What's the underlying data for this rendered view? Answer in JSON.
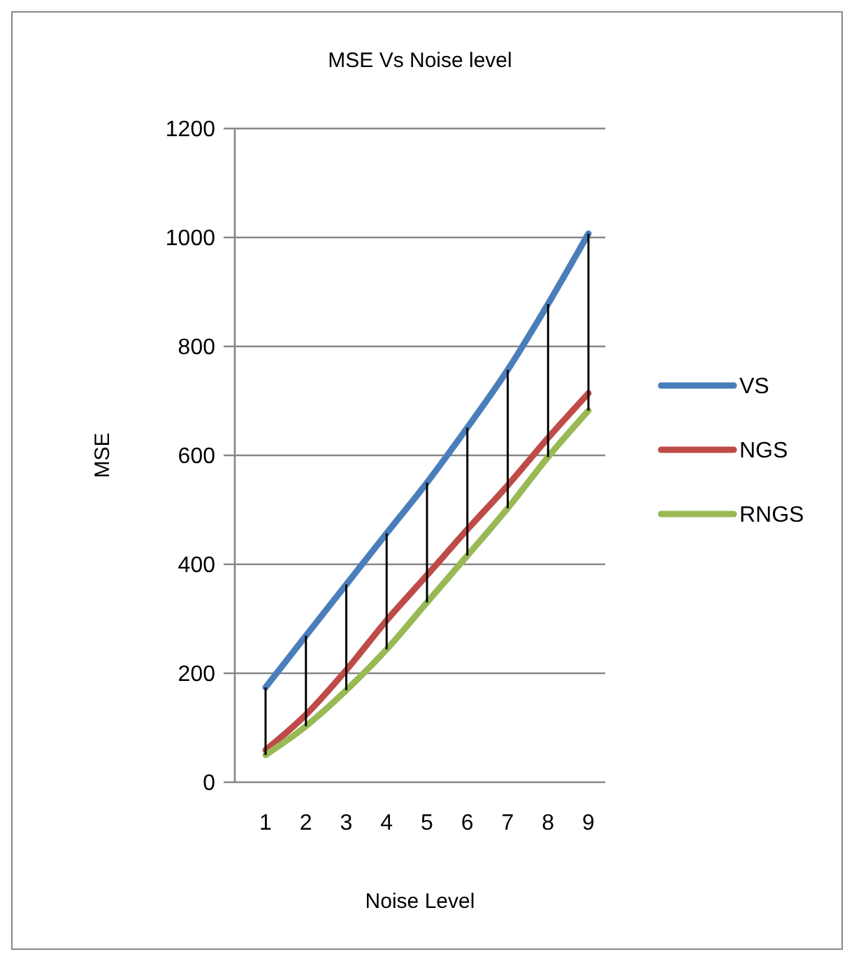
{
  "chart_data": {
    "type": "line",
    "title": "MSE Vs Noise level",
    "xlabel": "Noise Level",
    "ylabel": "MSE",
    "categories": [
      "1",
      "2",
      "3",
      "4",
      "5",
      "6",
      "7",
      "8",
      "9"
    ],
    "series": [
      {
        "name": "VS",
        "color": "#4a7ebb",
        "values": [
          174,
          269,
          363,
          457,
          550,
          651,
          757,
          878,
          1007
        ],
        "errors": [
          [
            50,
            174
          ],
          [
            103,
            269
          ],
          [
            169,
            363
          ],
          [
            244,
            457
          ],
          [
            330,
            550
          ],
          [
            416,
            651
          ],
          [
            503,
            757
          ],
          [
            597,
            878
          ],
          [
            682,
            1007
          ]
        ]
      },
      {
        "name": "NGS",
        "color": "#be4b48",
        "values": [
          59,
          124,
          206,
          297,
          380,
          464,
          545,
          632,
          714
        ]
      },
      {
        "name": "RNGS",
        "color": "#98b954",
        "values": [
          50,
          103,
          169,
          244,
          330,
          416,
          503,
          597,
          682
        ]
      }
    ],
    "ylim": [
      0,
      1200
    ],
    "yticks": [
      0,
      200,
      400,
      600,
      800,
      1000,
      1200
    ],
    "grid": "y",
    "legend": "right",
    "marker": "none",
    "line_style": "solid"
  }
}
